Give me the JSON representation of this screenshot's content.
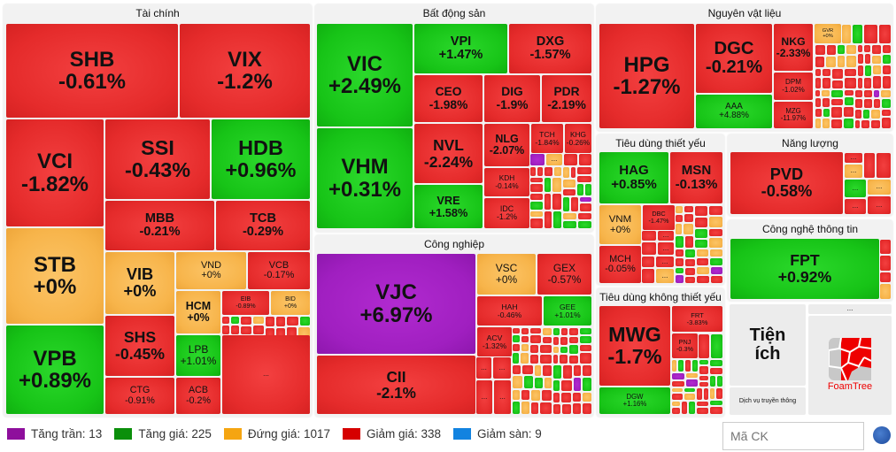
{
  "sectors": {
    "tai_chinh": {
      "title": "Tài chính",
      "tiles": [
        {
          "ticker": "SHB",
          "pct": "-0.61%",
          "status": "red"
        },
        {
          "ticker": "VIX",
          "pct": "-1.2%",
          "status": "red"
        },
        {
          "ticker": "VCI",
          "pct": "-1.82%",
          "status": "red"
        },
        {
          "ticker": "SSI",
          "pct": "-0.43%",
          "status": "red"
        },
        {
          "ticker": "HDB",
          "pct": "+0.96%",
          "status": "green"
        },
        {
          "ticker": "MBB",
          "pct": "-0.21%",
          "status": "red"
        },
        {
          "ticker": "TCB",
          "pct": "-0.29%",
          "status": "red"
        },
        {
          "ticker": "STB",
          "pct": "+0%",
          "status": "orange"
        },
        {
          "ticker": "VPB",
          "pct": "+0.89%",
          "status": "green"
        },
        {
          "ticker": "VIB",
          "pct": "+0%",
          "status": "orange"
        },
        {
          "ticker": "VND",
          "pct": "+0%",
          "status": "orange"
        },
        {
          "ticker": "VCB",
          "pct": "-0.17%",
          "status": "red"
        },
        {
          "ticker": "HCM",
          "pct": "+0%",
          "status": "orange"
        },
        {
          "ticker": "EIB",
          "pct": "-0.89%",
          "status": "red"
        },
        {
          "ticker": "BID",
          "pct": "+0%",
          "status": "orange"
        },
        {
          "ticker": "SHS",
          "pct": "-0.45%",
          "status": "red"
        },
        {
          "ticker": "CTG",
          "pct": "-0.91%",
          "status": "red"
        },
        {
          "ticker": "LPB",
          "pct": "+1.01%",
          "status": "green"
        },
        {
          "ticker": "ACB",
          "pct": "-0.2%",
          "status": "red"
        }
      ]
    },
    "bat_dong_san": {
      "title": "Bất động sản",
      "tiles": [
        {
          "ticker": "VIC",
          "pct": "+2.49%",
          "status": "green"
        },
        {
          "ticker": "VHM",
          "pct": "+0.31%",
          "status": "green"
        },
        {
          "ticker": "VPI",
          "pct": "+1.47%",
          "status": "green"
        },
        {
          "ticker": "DXG",
          "pct": "-1.57%",
          "status": "red"
        },
        {
          "ticker": "CEO",
          "pct": "-1.98%",
          "status": "red"
        },
        {
          "ticker": "DIG",
          "pct": "-1.9%",
          "status": "red"
        },
        {
          "ticker": "PDR",
          "pct": "-2.19%",
          "status": "red"
        },
        {
          "ticker": "NVL",
          "pct": "-2.24%",
          "status": "red"
        },
        {
          "ticker": "VRE",
          "pct": "+1.58%",
          "status": "green"
        },
        {
          "ticker": "NLG",
          "pct": "-2.07%",
          "status": "red"
        },
        {
          "ticker": "TCH",
          "pct": "-1.84%",
          "status": "red"
        },
        {
          "ticker": "KHG",
          "pct": "-0.26%",
          "status": "red"
        },
        {
          "ticker": "KDH",
          "pct": "-0.14%",
          "status": "red"
        },
        {
          "ticker": "IDC",
          "pct": "-1.2%",
          "status": "red"
        }
      ]
    },
    "cong_nghiep": {
      "title": "Công nghiệp",
      "tiles": [
        {
          "ticker": "VJC",
          "pct": "+6.97%",
          "status": "purple"
        },
        {
          "ticker": "CII",
          "pct": "-2.1%",
          "status": "red"
        },
        {
          "ticker": "VSC",
          "pct": "+0%",
          "status": "orange"
        },
        {
          "ticker": "GEX",
          "pct": "-0.57%",
          "status": "red"
        },
        {
          "ticker": "HAH",
          "pct": "-0.46%",
          "status": "red"
        },
        {
          "ticker": "GEE",
          "pct": "+1.01%",
          "status": "green"
        },
        {
          "ticker": "ACV",
          "pct": "-1.32%",
          "status": "red"
        }
      ]
    },
    "nguyen_vat_lieu": {
      "title": "Nguyên vật liệu",
      "tiles": [
        {
          "ticker": "HPG",
          "pct": "-1.27%",
          "status": "red"
        },
        {
          "ticker": "DGC",
          "pct": "-0.21%",
          "status": "red"
        },
        {
          "ticker": "AAA",
          "pct": "+4.88%",
          "status": "green"
        },
        {
          "ticker": "NKG",
          "pct": "-2.33%",
          "status": "red"
        },
        {
          "ticker": "GVR",
          "pct": "+0%",
          "status": "orange"
        },
        {
          "ticker": "DPM",
          "pct": "-1.02%",
          "status": "red"
        },
        {
          "ticker": "MZG",
          "pct": "-11.97%",
          "status": "red"
        }
      ]
    },
    "tieu_dung_thiet_yeu": {
      "title": "Tiêu dùng thiết yếu",
      "tiles": [
        {
          "ticker": "HAG",
          "pct": "+0.85%",
          "status": "green"
        },
        {
          "ticker": "MSN",
          "pct": "-0.13%",
          "status": "red"
        },
        {
          "ticker": "VNM",
          "pct": "+0%",
          "status": "orange"
        },
        {
          "ticker": "MCH",
          "pct": "-0.05%",
          "status": "red"
        },
        {
          "ticker": "DBC",
          "pct": "-1.47%",
          "status": "red"
        }
      ]
    },
    "nang_luong": {
      "title": "Năng lượng",
      "tiles": [
        {
          "ticker": "PVD",
          "pct": "-0.58%",
          "status": "red"
        }
      ]
    },
    "cong_nghe_thong_tin": {
      "title": "Công nghệ thông tin",
      "tiles": [
        {
          "ticker": "FPT",
          "pct": "+0.92%",
          "status": "green"
        }
      ]
    },
    "tieu_dung_khong_thiet_yeu": {
      "title": "Tiêu dùng không thiết yếu",
      "tiles": [
        {
          "ticker": "MWG",
          "pct": "-1.7%",
          "status": "red"
        },
        {
          "ticker": "DGW",
          "pct": "+1.16%",
          "status": "green"
        },
        {
          "ticker": "FRT",
          "pct": "-3.83%",
          "status": "red"
        },
        {
          "ticker": "PNJ",
          "pct": "-0.3%",
          "status": "red"
        }
      ]
    }
  },
  "other_groups": {
    "tien_ich": "Tiện ích",
    "dich_vu_truyen_thong": "Dịch vụ truyền thông",
    "more": "...",
    "foamtree": "FoamTree"
  },
  "ellipsis": "...",
  "legend": [
    {
      "label": "Tăng trần: 13",
      "color": "#8e0f9c"
    },
    {
      "label": "Tăng giá: 225",
      "color": "#0b8f0b"
    },
    {
      "label": "Đứng giá: 1017",
      "color": "#f5a511"
    },
    {
      "label": "Giảm giá: 338",
      "color": "#d60000"
    },
    {
      "label": "Giảm sàn: 9",
      "color": "#1283e0"
    }
  ],
  "search": {
    "placeholder": "Mã CK"
  }
}
